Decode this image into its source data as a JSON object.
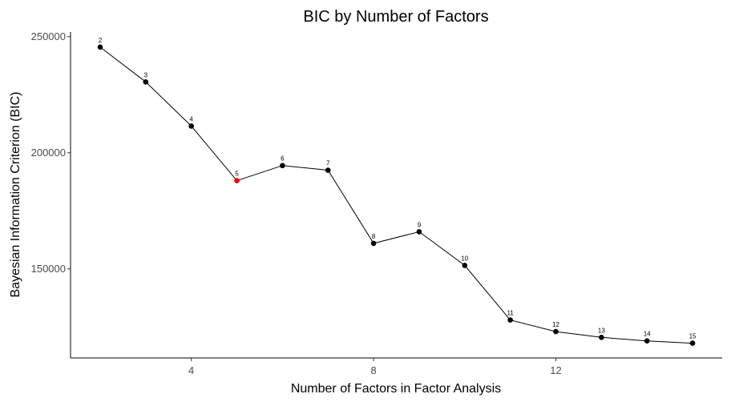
{
  "chart_data": {
    "type": "line",
    "title": "BIC by Number of Factors",
    "xlabel": "Number of Factors in Factor Analysis",
    "ylabel": "Bayesian Information Criterion (BIC)",
    "x": [
      2,
      3,
      4,
      5,
      6,
      7,
      8,
      9,
      10,
      11,
      12,
      13,
      14,
      15
    ],
    "point_labels": [
      "2",
      "3",
      "4",
      "5",
      "6",
      "7",
      "8",
      "9",
      "10",
      "11",
      "12",
      "13",
      "14",
      "15"
    ],
    "values": [
      245500,
      230500,
      211500,
      188000,
      194500,
      192500,
      161000,
      166000,
      151500,
      128000,
      123000,
      120500,
      119000,
      118000
    ],
    "highlight_x": 5,
    "highlight_color": "#ff0000",
    "point_color": "#000000",
    "line_color": "#000000",
    "x_ticks": [
      4,
      8,
      12
    ],
    "x_tick_labels": [
      "4",
      "8",
      "12"
    ],
    "y_ticks": [
      150000,
      200000,
      250000
    ],
    "y_tick_labels": [
      "150000",
      "200000",
      "250000"
    ],
    "xlim": [
      1.35,
      15.65
    ],
    "ylim": [
      111650,
      252000
    ],
    "grid": false,
    "legend": "none"
  }
}
